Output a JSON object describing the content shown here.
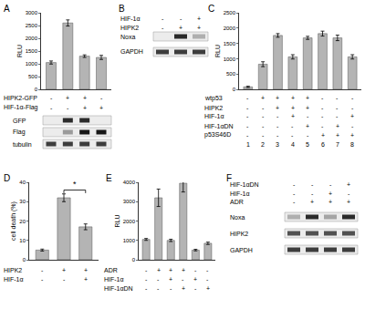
{
  "chart_data": [
    {
      "type": "bar",
      "title": "A",
      "y_label": "RLU",
      "color": "#b4b4b4",
      "tick_labels": "y",
      "categories": [
        null,
        null,
        null,
        null
      ],
      "values": [
        1050,
        2600,
        1300,
        1250
      ],
      "errors": [
        60,
        120,
        50,
        80
      ],
      "ylim": [
        0,
        3000
      ],
      "yticks": [
        0,
        500,
        1000,
        1500,
        2000,
        2500,
        3000
      ],
      "rows": [
        {
          "label": "HIPK2-GFP",
          "signs": [
            "-",
            "+",
            "+",
            "-"
          ]
        },
        {
          "label": "HIF-1α-Flag",
          "signs": [
            "-",
            "-",
            "+",
            "+"
          ]
        }
      ],
      "blots": [
        {
          "label": "GFP",
          "bands": [
            0,
            0.9,
            0.9,
            0
          ]
        },
        {
          "label": "Flag",
          "bands": [
            0,
            0.3,
            1,
            1
          ]
        },
        {
          "label": "tubulin",
          "bands": [
            0.8,
            0.8,
            0.8,
            0.8
          ]
        }
      ]
    },
    {
      "type": "bar",
      "title": "C",
      "y_label": "RLU",
      "color": "#b4b4b4",
      "tick_labels": "y",
      "categories": [
        null,
        null,
        null,
        null,
        null,
        null,
        null,
        null
      ],
      "values": [
        80,
        820,
        1760,
        1060,
        1680,
        1820,
        1680,
        1060
      ],
      "errors": [
        20,
        80,
        60,
        70,
        50,
        80,
        90,
        70
      ],
      "ylim": [
        0,
        2500
      ],
      "yticks": [
        0,
        500,
        1000,
        1500,
        2000,
        2500
      ],
      "rows": [
        {
          "label": "wtp53",
          "signs": [
            "-",
            "+",
            "+",
            "+",
            "+",
            "-",
            "-",
            "-"
          ]
        },
        {
          "label": "HIPK2",
          "signs": [
            "-",
            "-",
            "+",
            "+",
            "+",
            "-",
            "-",
            "-"
          ]
        },
        {
          "label": "HIF-1α",
          "signs": [
            "-",
            "-",
            "-",
            "+",
            "-",
            "-",
            "-",
            "+"
          ]
        },
        {
          "label": "HIF-1αDN",
          "signs": [
            "-",
            "-",
            "-",
            "-",
            "+",
            "-",
            "+",
            "-"
          ]
        },
        {
          "label": "p53S46D",
          "signs": [
            "-",
            "-",
            "-",
            "-",
            "-",
            "+",
            "+",
            "+"
          ]
        },
        {
          "signs": [
            "1",
            "2",
            "3",
            "4",
            "5",
            "6",
            "7",
            "8"
          ]
        }
      ]
    },
    {
      "type": "bar",
      "title": "D",
      "y_label": "cell death (%)",
      "color": "#b4b4b4",
      "tick_labels": "y",
      "categories": [
        null,
        null,
        null
      ],
      "values": [
        5,
        32,
        17
      ],
      "errors": [
        0.5,
        2,
        1.5
      ],
      "ylim": [
        0,
        40
      ],
      "yticks": [
        0,
        10,
        20,
        30,
        40
      ],
      "annotations": [
        {
          "text": "*",
          "between": [
            1,
            2
          ],
          "y": 36
        }
      ],
      "rows": [
        {
          "label": "HIPK2",
          "signs": [
            "-",
            "+",
            "+"
          ]
        },
        {
          "label": "HIF-1α",
          "signs": [
            "-",
            "-",
            "+"
          ]
        }
      ]
    },
    {
      "type": "bar",
      "title": "E",
      "y_label": "RLU",
      "color": "#b4b4b4",
      "tick_labels": "y",
      "categories": [
        null,
        null,
        null,
        null,
        null,
        null
      ],
      "values": [
        1050,
        3200,
        1000,
        3950,
        500,
        850
      ],
      "errors": [
        50,
        450,
        60,
        450,
        40,
        60
      ],
      "ylim": [
        0,
        4000
      ],
      "yticks": [
        0,
        1000,
        2000,
        3000,
        4000
      ],
      "rows": [
        {
          "label": "ADR",
          "signs": [
            "-",
            "+",
            "+",
            "+",
            "-",
            "-"
          ]
        },
        {
          "label": "HIF-1α",
          "signs": [
            "-",
            "-",
            "+",
            "-",
            "+",
            "-"
          ]
        },
        {
          "label": "HIF-1αDN",
          "signs": [
            "-",
            "-",
            "-",
            "+",
            "-",
            "+"
          ]
        }
      ]
    }
  ],
  "blot_panels": [
    {
      "title": "B",
      "rows": [
        {
          "label": "HIF-1α",
          "signs": [
            "-",
            "-",
            "+"
          ]
        },
        {
          "label": "HIPK2",
          "signs": [
            "-",
            "+",
            "+"
          ]
        }
      ],
      "blots": [
        {
          "label": "Noxa",
          "bands": [
            0,
            0.9,
            0.2
          ]
        },
        {
          "label": "GAPDH",
          "bands": [
            0.8,
            0.8,
            0.8
          ]
        }
      ]
    },
    {
      "title": "F",
      "rows": [
        {
          "label": "HIF-1αDN",
          "signs": [
            "-",
            "-",
            "-",
            "+"
          ]
        },
        {
          "label": "HIF-1α",
          "signs": [
            "-",
            "-",
            "+",
            "-"
          ]
        },
        {
          "label": "ADR",
          "signs": [
            "-",
            "+",
            "+",
            "+"
          ]
        }
      ],
      "blots": [
        {
          "label": "Noxa",
          "bands": [
            0.2,
            0.9,
            0.25,
            0.9
          ]
        },
        {
          "label": "HIPK2",
          "bands": [
            0.7,
            0.7,
            0.7,
            0.7
          ]
        },
        {
          "label": "GAPDH",
          "bands": [
            0.8,
            0.8,
            0.8,
            0.8
          ]
        }
      ]
    }
  ]
}
